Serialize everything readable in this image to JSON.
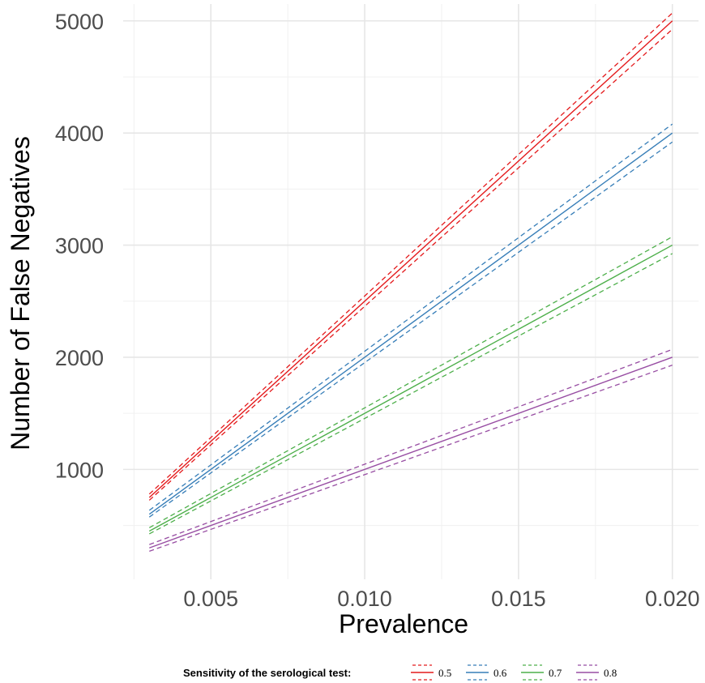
{
  "chart_data": {
    "type": "line",
    "xlabel": "Prevalence",
    "ylabel": "Number of False Negatives",
    "xlim": [
      0.00215,
      0.02085
    ],
    "ylim": [
      20,
      5150
    ],
    "x_ticks": [
      0.005,
      0.01,
      0.015,
      0.02
    ],
    "x_tick_labels": [
      "0.005",
      "0.010",
      "0.015",
      "0.020"
    ],
    "y_ticks": [
      1000,
      2000,
      3000,
      4000,
      5000
    ],
    "y_tick_labels": [
      "1000",
      "2000",
      "3000",
      "4000",
      "5000"
    ],
    "grid": true,
    "legend": {
      "position": "bottom",
      "title": "Sensitivity of the serological test:"
    },
    "x": [
      0.003,
      0.02
    ],
    "series": [
      {
        "name": "0.5",
        "color": "#e41a1c",
        "values": [
          750,
          5000
        ],
        "lower": [
          725,
          4925
        ],
        "upper": [
          780,
          5070
        ]
      },
      {
        "name": "0.6",
        "color": "#377eb8",
        "values": [
          600,
          4000
        ],
        "lower": [
          575,
          3920
        ],
        "upper": [
          635,
          4080
        ]
      },
      {
        "name": "0.7",
        "color": "#4daf4a",
        "values": [
          450,
          3000
        ],
        "lower": [
          425,
          2925
        ],
        "upper": [
          480,
          3075
        ]
      },
      {
        "name": "0.8",
        "color": "#984ea3",
        "values": [
          300,
          2000
        ],
        "lower": [
          270,
          1930
        ],
        "upper": [
          330,
          2070
        ]
      }
    ]
  }
}
